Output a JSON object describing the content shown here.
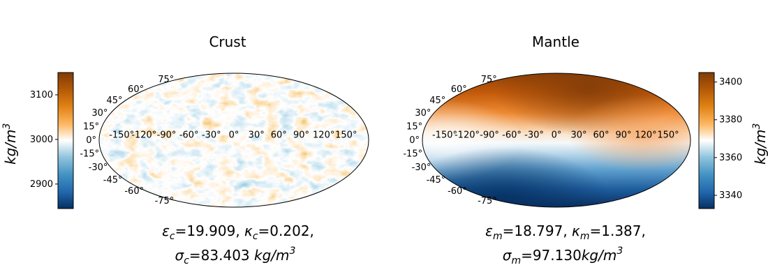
{
  "chart_data": [
    {
      "type": "heatmap",
      "projection": "mollweide",
      "title": "Crust",
      "colormap": [
        "#053061",
        "#2166ac",
        "#4393c3",
        "#92c5de",
        "#ffffff",
        "#fdb863",
        "#e08214",
        "#b35806",
        "#7f3b08"
      ],
      "lon_ticks": [
        "-150°",
        "-120°",
        "-90°",
        "-60°",
        "-30°",
        "0°",
        "30°",
        "60°",
        "90°",
        "120°",
        "150°"
      ],
      "lat_ticks": [
        "75°",
        "60°",
        "45°",
        "30°",
        "15°",
        "0°",
        "-15°",
        "-30°",
        "-45°",
        "-60°",
        "-75°"
      ],
      "colorbar": {
        "label": "kg/m",
        "label_exp": "3",
        "side": "left",
        "range": [
          2845,
          3150
        ],
        "ticks": [
          "3100",
          "3000",
          "2900"
        ],
        "tick_values": [
          3100,
          3000,
          2900
        ]
      },
      "caption_line1": [
        {
          "sym": "ε",
          "sub": "c",
          "rest": "=19.909, "
        },
        {
          "sym": "κ",
          "sub": "c",
          "rest": "=0.202,"
        }
      ],
      "caption_line2": {
        "sym": "σ",
        "sub": "c",
        "rest": "=83.403 ",
        "unit": "kg/m",
        "exp": "3"
      }
    },
    {
      "type": "heatmap",
      "projection": "mollweide",
      "title": "Mantle",
      "colormap": [
        "#053061",
        "#2166ac",
        "#4393c3",
        "#92c5de",
        "#ffffff",
        "#fdb863",
        "#e08214",
        "#b35806",
        "#7f3b08"
      ],
      "lon_ticks": [
        "-150°",
        "-120°",
        "-90°",
        "-60°",
        "-30°",
        "0°",
        "30°",
        "60°",
        "90°",
        "120°",
        "150°"
      ],
      "lat_ticks": [
        "75°",
        "60°",
        "45°",
        "30°",
        "15°",
        "0°",
        "-15°",
        "-30°",
        "-45°",
        "-60°",
        "-75°"
      ],
      "colorbar": {
        "label": "kg/m",
        "label_exp": "3",
        "side": "right",
        "range": [
          3333,
          3405
        ],
        "ticks": [
          "3400",
          "3380",
          "3360",
          "3340"
        ],
        "tick_values": [
          3400,
          3380,
          3360,
          3340
        ]
      },
      "caption_line1": [
        {
          "sym": "ε",
          "sub": "m",
          "rest": "=18.797, "
        },
        {
          "sym": "κ",
          "sub": "m",
          "rest": "=1.387,"
        }
      ],
      "caption_line2": {
        "sym": "σ",
        "sub": "m",
        "rest": "=97.130",
        "unit": "kg/m",
        "exp": "3"
      }
    }
  ]
}
